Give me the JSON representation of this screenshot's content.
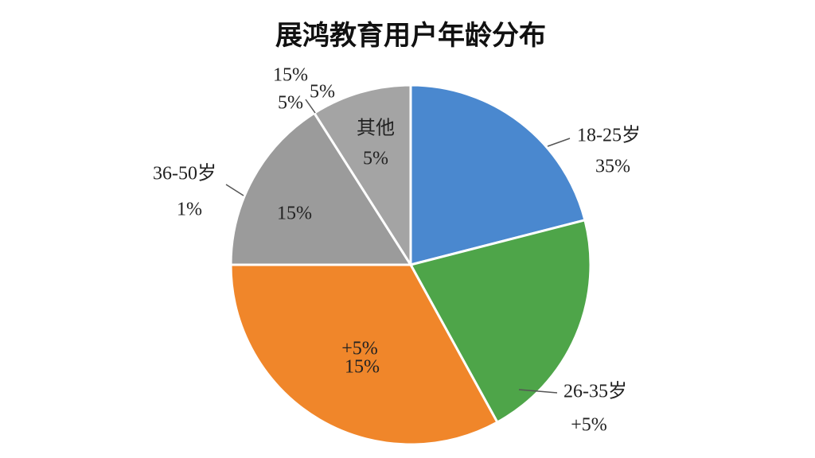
{
  "chart_data": {
    "type": "pie",
    "title": "展鸿教育用户年龄分布",
    "categories": [
      "18-25岁",
      "26-35岁",
      null,
      "36-50岁",
      "其他"
    ],
    "values": [
      21,
      21,
      33,
      16,
      9
    ],
    "colors": [
      "#4a88cf",
      "#4ea549",
      "#f0862a",
      "#9b9b9b",
      "#a4a4a4"
    ],
    "annotations": [
      "35%",
      "+5%",
      "+5%",
      "15%",
      "1%",
      "15%",
      "5%",
      "15%",
      "5%",
      "5%"
    ]
  }
}
